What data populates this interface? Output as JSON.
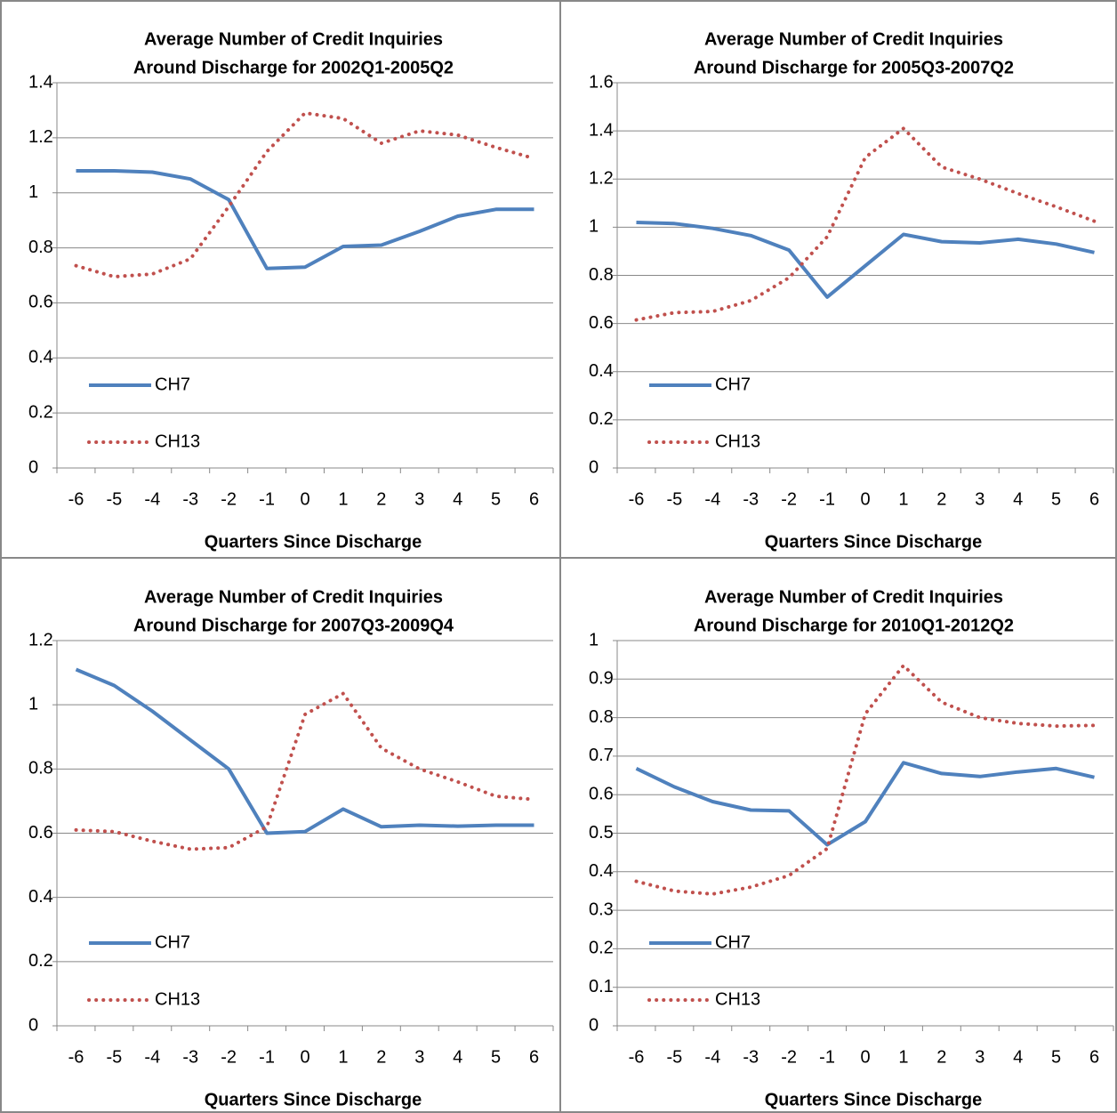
{
  "chart_data": [
    {
      "type": "line",
      "title": [
        "Average Number of Credit Inquiries",
        "Around Discharge for 2002Q1-2005Q2"
      ],
      "xlabel": "Quarters Since Discharge",
      "categories": [
        -6,
        -5,
        -4,
        -3,
        -2,
        -1,
        0,
        1,
        2,
        3,
        4,
        5,
        6
      ],
      "series": [
        {
          "name": "CH7",
          "color": "#4f81bd",
          "style": "solid",
          "values": [
            1.08,
            1.08,
            1.075,
            1.05,
            0.975,
            0.725,
            0.73,
            0.805,
            0.81,
            0.86,
            0.915,
            0.94,
            0.94
          ]
        },
        {
          "name": "CH13",
          "color": "#c0504d",
          "style": "dotted",
          "values": [
            0.735,
            0.695,
            0.705,
            0.76,
            0.95,
            1.15,
            1.29,
            1.27,
            1.18,
            1.225,
            1.21,
            1.165,
            1.125
          ]
        }
      ],
      "ylim": [
        0,
        1.4
      ],
      "yticks": [
        0,
        0.2,
        0.4,
        0.6,
        0.8,
        1,
        1.2,
        1.4
      ],
      "grid": true,
      "legend": "lower left"
    },
    {
      "type": "line",
      "title": [
        "Average Number of Credit Inquiries",
        "Around Discharge for 2005Q3-2007Q2"
      ],
      "xlabel": "Quarters Since Discharge",
      "categories": [
        -6,
        -5,
        -4,
        -3,
        -2,
        -1,
        0,
        1,
        2,
        3,
        4,
        5,
        6
      ],
      "series": [
        {
          "name": "CH7",
          "color": "#4f81bd",
          "style": "solid",
          "values": [
            1.02,
            1.015,
            0.995,
            0.965,
            0.905,
            0.71,
            0.84,
            0.97,
            0.94,
            0.935,
            0.95,
            0.93,
            0.895
          ]
        },
        {
          "name": "CH13",
          "color": "#c0504d",
          "style": "dotted",
          "values": [
            0.615,
            0.645,
            0.65,
            0.695,
            0.79,
            0.96,
            1.29,
            1.41,
            1.25,
            1.2,
            1.14,
            1.085,
            1.025
          ]
        }
      ],
      "ylim": [
        0,
        1.6
      ],
      "yticks": [
        0,
        0.2,
        0.4,
        0.6,
        0.8,
        1,
        1.2,
        1.4,
        1.6
      ],
      "grid": true,
      "legend": "lower left"
    },
    {
      "type": "line",
      "title": [
        "Average Number of Credit Inquiries",
        "Around Discharge for 2007Q3-2009Q4"
      ],
      "xlabel": "Quarters Since Discharge",
      "categories": [
        -6,
        -5,
        -4,
        -3,
        -2,
        -1,
        0,
        1,
        2,
        3,
        4,
        5,
        6
      ],
      "series": [
        {
          "name": "CH7",
          "color": "#4f81bd",
          "style": "solid",
          "values": [
            1.11,
            1.06,
            0.98,
            0.89,
            0.8,
            0.6,
            0.605,
            0.675,
            0.62,
            0.625,
            0.622,
            0.625,
            0.625
          ]
        },
        {
          "name": "CH13",
          "color": "#c0504d",
          "style": "dotted",
          "values": [
            0.61,
            0.605,
            0.575,
            0.55,
            0.555,
            0.62,
            0.97,
            1.035,
            0.865,
            0.8,
            0.76,
            0.715,
            0.705
          ]
        }
      ],
      "ylim": [
        0,
        1.2
      ],
      "yticks": [
        0,
        0.2,
        0.4,
        0.6,
        0.8,
        1,
        1.2
      ],
      "grid": true,
      "legend": "lower left"
    },
    {
      "type": "line",
      "title": [
        "Average Number of Credit Inquiries",
        "Around Discharge for 2010Q1-2012Q2"
      ],
      "xlabel": "Quarters Since Discharge",
      "categories": [
        -6,
        -5,
        -4,
        -3,
        -2,
        -1,
        0,
        1,
        2,
        3,
        4,
        5,
        6
      ],
      "series": [
        {
          "name": "CH7",
          "color": "#4f81bd",
          "style": "solid",
          "values": [
            0.668,
            0.62,
            0.582,
            0.56,
            0.558,
            0.47,
            0.53,
            0.683,
            0.655,
            0.647,
            0.659,
            0.668,
            0.645
          ]
        },
        {
          "name": "CH13",
          "color": "#c0504d",
          "style": "dotted",
          "values": [
            0.375,
            0.35,
            0.342,
            0.36,
            0.39,
            0.46,
            0.81,
            0.935,
            0.84,
            0.8,
            0.785,
            0.778,
            0.78
          ]
        }
      ],
      "ylim": [
        0,
        1
      ],
      "yticks": [
        0,
        0.1,
        0.2,
        0.3,
        0.4,
        0.5,
        0.6,
        0.7,
        0.8,
        0.9,
        1
      ],
      "grid": true,
      "legend": "lower left"
    }
  ]
}
